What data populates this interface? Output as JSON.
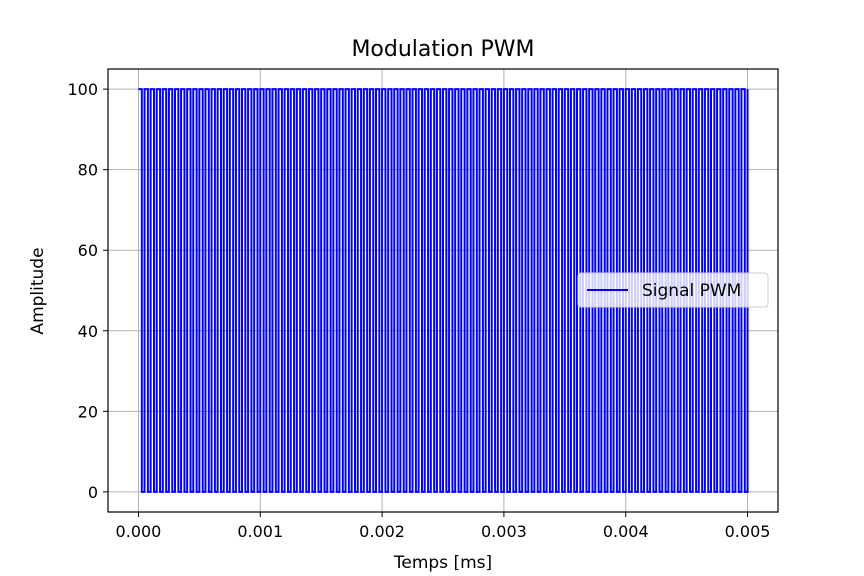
{
  "chart_data": {
    "type": "line",
    "title": "Modulation PWM",
    "xlabel": "Temps [ms]",
    "ylabel": "Amplitude",
    "xlim": [
      -0.00025,
      0.00525
    ],
    "ylim": [
      -5,
      105
    ],
    "xticks": [
      0.0,
      0.001,
      0.002,
      0.003,
      0.004,
      0.005
    ],
    "xtick_labels": [
      "0.000",
      "0.001",
      "0.002",
      "0.003",
      "0.004",
      "0.005"
    ],
    "yticks": [
      0,
      20,
      40,
      60,
      80,
      100
    ],
    "ytick_labels": [
      "0",
      "20",
      "40",
      "60",
      "80",
      "100"
    ],
    "grid": true,
    "legend_position": "center-right",
    "series": [
      {
        "name": "Signal PWM",
        "color": "#0000ff",
        "low": 0,
        "high": 100,
        "x_start": 0.0,
        "x_end": 0.005,
        "pulse_period": 5e-05,
        "pulse_count": 100,
        "duty_cycle": 0.55
      }
    ]
  }
}
